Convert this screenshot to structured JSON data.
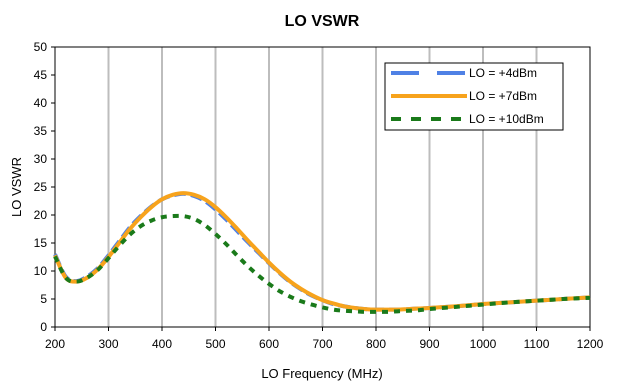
{
  "chart_data": {
    "type": "line",
    "title": "LO VSWR",
    "xlabel": "LO Frequency (MHz)",
    "ylabel": "LO VSWR",
    "xlim": [
      200,
      1200
    ],
    "ylim": [
      0,
      50
    ],
    "x_ticks": [
      200,
      300,
      400,
      500,
      600,
      700,
      800,
      900,
      1000,
      1100,
      1200
    ],
    "y_ticks": [
      0,
      5,
      10,
      15,
      20,
      25,
      30,
      35,
      40,
      45,
      50
    ],
    "grid": "vertical",
    "legend_position": "top-right",
    "series": [
      {
        "name": "LO = +4dBm",
        "color": "#4F81E5",
        "dash": "long-dash",
        "x": [
          200,
          220,
          240,
          260,
          280,
          300,
          320,
          340,
          360,
          380,
          400,
          420,
          440,
          460,
          480,
          500,
          520,
          540,
          560,
          580,
          600,
          620,
          640,
          660,
          680,
          700,
          720,
          740,
          760,
          780,
          800,
          820,
          840,
          860,
          880,
          900,
          950,
          1000,
          1050,
          1100,
          1150,
          1200
        ],
        "y": [
          13,
          9,
          8.2,
          9,
          10.5,
          12.8,
          15.3,
          17.8,
          19.8,
          21.5,
          22.8,
          23.5,
          23.8,
          23.4,
          22.5,
          21,
          19.2,
          17.2,
          15.2,
          13.3,
          11.4,
          9.6,
          8,
          6.7,
          5.6,
          4.8,
          4.1,
          3.7,
          3.4,
          3.2,
          3.1,
          3.1,
          3.1,
          3.2,
          3.3,
          3.4,
          3.7,
          4.1,
          4.4,
          4.7,
          5,
          5.3
        ]
      },
      {
        "name": "LO = +7dBm",
        "color": "#F7A31C",
        "dash": "solid",
        "x": [
          200,
          220,
          240,
          260,
          280,
          300,
          320,
          340,
          360,
          380,
          400,
          420,
          440,
          460,
          480,
          500,
          520,
          540,
          560,
          580,
          600,
          620,
          640,
          660,
          680,
          700,
          720,
          740,
          760,
          780,
          800,
          820,
          840,
          860,
          880,
          900,
          950,
          1000,
          1050,
          1100,
          1150,
          1200
        ],
        "y": [
          12.8,
          8.8,
          8.1,
          8.8,
          10.3,
          12.5,
          15,
          17.5,
          19.6,
          21.4,
          22.8,
          23.6,
          23.9,
          23.6,
          22.8,
          21.4,
          19.6,
          17.6,
          15.5,
          13.5,
          11.5,
          9.7,
          8.1,
          6.8,
          5.7,
          4.8,
          4.2,
          3.7,
          3.4,
          3.2,
          3.1,
          3.1,
          3.1,
          3.2,
          3.3,
          3.4,
          3.7,
          4.1,
          4.4,
          4.7,
          5,
          5.3
        ]
      },
      {
        "name": "LO = +10dBm",
        "color": "#1A7A1A",
        "dash": "short-dash",
        "x": [
          200,
          220,
          240,
          260,
          280,
          300,
          320,
          340,
          360,
          380,
          400,
          420,
          440,
          460,
          480,
          500,
          520,
          540,
          560,
          580,
          600,
          620,
          640,
          660,
          680,
          700,
          720,
          740,
          760,
          780,
          800,
          820,
          840,
          860,
          880,
          900,
          950,
          1000,
          1050,
          1100,
          1150,
          1200
        ],
        "y": [
          12.6,
          8.8,
          8.1,
          8.8,
          10.2,
          12.3,
          14.5,
          16.5,
          18,
          19,
          19.6,
          19.8,
          19.8,
          19.3,
          18.2,
          16.6,
          14.8,
          12.8,
          10.9,
          9.2,
          7.7,
          6.4,
          5.4,
          4.6,
          4,
          3.5,
          3.1,
          2.9,
          2.8,
          2.7,
          2.7,
          2.7,
          2.8,
          2.9,
          3,
          3.2,
          3.6,
          4,
          4.4,
          4.7,
          5,
          5.2
        ]
      }
    ]
  }
}
